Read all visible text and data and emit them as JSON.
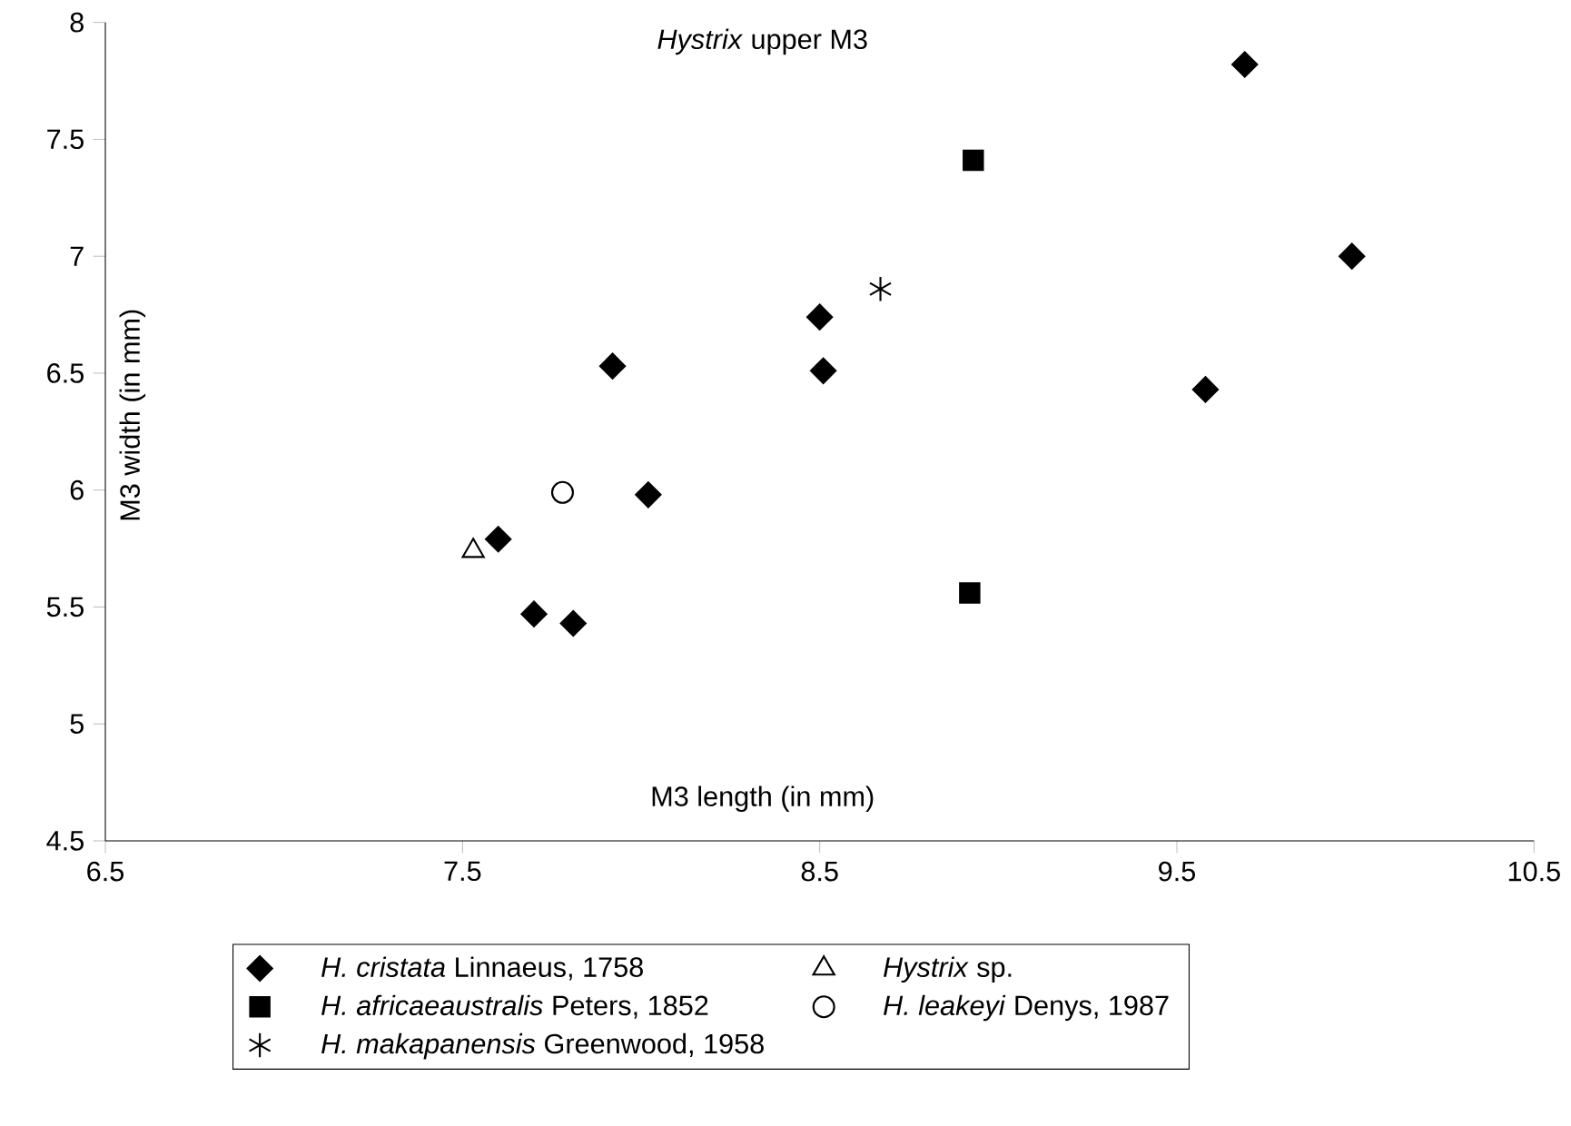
{
  "chart_data": {
    "type": "scatter",
    "title": "*Hystrix* upper M3",
    "xlabel": "M3 length (in mm)",
    "ylabel": "M3 width (in mm)",
    "xlim": [
      6.5,
      10.5
    ],
    "xticks": [
      6.5,
      7.5,
      8.5,
      9.5,
      10.5
    ],
    "ylim": [
      4.5,
      8
    ],
    "yticks": [
      4.5,
      5,
      5.5,
      6,
      6.5,
      7,
      7.5,
      8
    ],
    "grid": false,
    "legend": "bottom",
    "series": [
      {
        "name": "*H. cristata* Linnaeus, 1758",
        "color": "#000000",
        "marker": "diamond",
        "x": [
          7.92,
          8.02,
          7.6,
          7.7,
          7.81,
          8.5,
          8.51,
          9.69,
          9.99,
          9.58
        ],
        "values": [
          6.53,
          5.98,
          5.79,
          5.47,
          5.43,
          6.74,
          6.51,
          7.82,
          7.0,
          6.43
        ]
      },
      {
        "name": "*Hystrix* sp.",
        "color": "#000000",
        "marker": "triangle",
        "x": [
          7.53
        ],
        "values": [
          5.74
        ]
      },
      {
        "name": "*H. africaeaustralis* Peters, 1852",
        "color": "#000000",
        "marker": "square",
        "x": [
          8.93,
          8.92
        ],
        "values": [
          7.41,
          5.56
        ]
      },
      {
        "name": "*H. leakeyi* Denys, 1987",
        "color": "#000000",
        "marker": "circle",
        "x": [
          7.78
        ],
        "values": [
          5.99
        ]
      },
      {
        "name": "*H. makapanensis* Greenwood, 1958",
        "color": "#000000",
        "marker": "cross",
        "x": [
          8.67
        ],
        "values": [
          6.86
        ]
      }
    ]
  }
}
